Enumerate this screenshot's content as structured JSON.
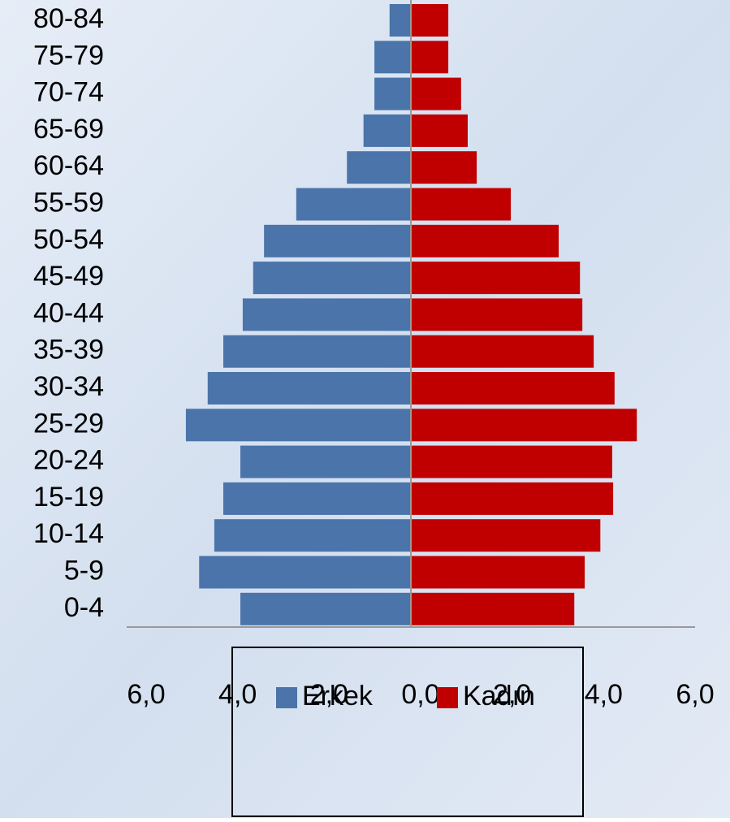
{
  "chart_data": {
    "type": "population-pyramid",
    "categories": [
      "80-84",
      "75-79",
      "70-74",
      "65-69",
      "60-64",
      "55-59",
      "50-54",
      "45-49",
      "40-44",
      "35-39",
      "30-34",
      "25-29",
      "20-24",
      "15-19",
      "10-14",
      "5-9",
      "0-4"
    ],
    "series": [
      {
        "name": "Erkek",
        "color": "#4a74aa",
        "values": [
          -0.45,
          -0.77,
          -0.77,
          -1.0,
          -1.35,
          -2.42,
          -3.1,
          -3.33,
          -3.55,
          -3.96,
          -4.29,
          -4.75,
          -3.6,
          -3.96,
          -4.15,
          -4.47,
          -3.6
        ]
      },
      {
        "name": "Kadın",
        "color": "#c00000",
        "values": [
          0.79,
          0.79,
          1.06,
          1.2,
          1.39,
          2.11,
          3.12,
          3.57,
          3.62,
          3.86,
          4.3,
          4.77,
          4.25,
          4.27,
          4.0,
          3.67,
          3.45
        ]
      }
    ],
    "xlim": [
      -6,
      6
    ],
    "xticks": [
      {
        "value": -6,
        "label": "6,0"
      },
      {
        "value": -4,
        "label": "4,0"
      },
      {
        "value": -2,
        "label": "2,0"
      },
      {
        "value": 0,
        "label": "0,0"
      },
      {
        "value": 2,
        "label": "2,0"
      },
      {
        "value": 4,
        "label": "4,0"
      },
      {
        "value": 6,
        "label": "6,0"
      }
    ],
    "legend": "bottom"
  }
}
